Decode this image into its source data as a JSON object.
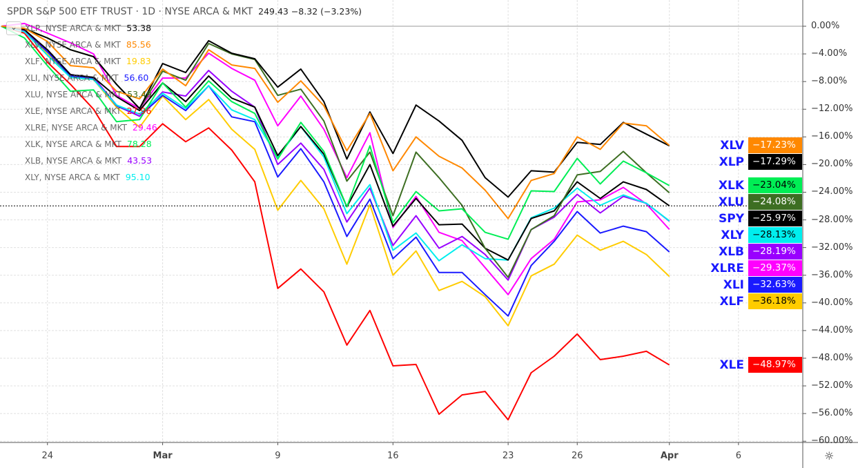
{
  "header": {
    "title": "SPDR S&P 500 ETF TRUST · 1D · NYSE ARCA & MKT",
    "quote": "249.43 −8.32 (−3.23%)",
    "collapse_icon": "chevron-down-icon"
  },
  "legend": [
    {
      "label": "XLP, NYSE ARCA & MKT",
      "value": "53.38",
      "color": "#111111"
    },
    {
      "label": "XLV, NYSE ARCA & MKT",
      "value": "85.56",
      "color": "#ff8800"
    },
    {
      "label": "XLF, NYSE ARCA & MKT",
      "value": "19.83",
      "color": "#ffcc00"
    },
    {
      "label": "XLI, NYSE ARCA & MKT",
      "value": "56.60",
      "color": "#1a1aff"
    },
    {
      "label": "XLU, NYSE ARCA & MKT",
      "value": "53.49",
      "color": "#3d6e22"
    },
    {
      "label": "XLE, NYSE ARCA & MKT",
      "value": "27.96",
      "color": "#ff0000"
    },
    {
      "label": "XLRE, NYSE ARCA & MKT",
      "value": "29.46",
      "color": "#ff00ff"
    },
    {
      "label": "XLK, NYSE ARCA & MKT",
      "value": "78.28",
      "color": "#00ee55"
    },
    {
      "label": "XLB, NYSE ARCA & MKT",
      "value": "43.53",
      "color": "#9900ff"
    },
    {
      "label": "XLY, NYSE ARCA & MKT",
      "value": "95.10",
      "color": "#00eeee"
    }
  ],
  "chart_data": {
    "type": "line",
    "title": "SPDR S&P 500 ETF TRUST · 1D · NYSE ARCA & MKT",
    "x": [
      "Feb 20",
      "Feb 21",
      "Feb 24",
      "Feb 25",
      "Feb 26",
      "Feb 27",
      "Feb 28",
      "Mar 2",
      "Mar 3",
      "Mar 4",
      "Mar 5",
      "Mar 6",
      "Mar 9",
      "Mar 10",
      "Mar 11",
      "Mar 12",
      "Mar 13",
      "Mar 16",
      "Mar 17",
      "Mar 18",
      "Mar 19",
      "Mar 20",
      "Mar 23",
      "Mar 24",
      "Mar 25",
      "Mar 26",
      "Mar 27",
      "Mar 30",
      "Mar 31",
      "Apr 1"
    ],
    "x_tick_labels": [
      "24",
      "Mar",
      "9",
      "16",
      "23",
      "26",
      "Apr",
      "6"
    ],
    "y_tick_labels": [
      "0.00%",
      "−4.00%",
      "−8.00%",
      "−12.00%",
      "−16.00%",
      "−20.00%",
      "−24.00%",
      "−28.00%",
      "−32.00%",
      "−36.00%",
      "−40.00%",
      "−44.00%",
      "−48.00%",
      "−52.00%",
      "−56.00%",
      "−60.00%"
    ],
    "ylim": [
      -61,
      3.5
    ],
    "yunit": "%",
    "grid": true,
    "legend_position": "top-left",
    "series": [
      {
        "name": "XLV",
        "color": "#ff8800",
        "badge_text": "#ffffff",
        "last": "−17.23%",
        "values": [
          0,
          -0.3,
          -2.2,
          -5.7,
          -6.0,
          -9.4,
          -10.5,
          -6.2,
          -8.6,
          -3.4,
          -5.6,
          -6.1,
          -11.0,
          -7.9,
          -11.5,
          -18.0,
          -12.6,
          -20.9,
          -16.0,
          -18.8,
          -20.5,
          -23.7,
          -27.8,
          -22.3,
          -21.3,
          -16.0,
          -17.8,
          -14.0,
          -14.4,
          -17.23
        ]
      },
      {
        "name": "XLP",
        "color": "#000000",
        "badge_text": "#ffffff",
        "last": "−17.29%",
        "values": [
          0,
          -0.4,
          -1.7,
          -3.4,
          -4.4,
          -8.4,
          -11.9,
          -5.4,
          -6.7,
          -2.1,
          -3.9,
          -4.7,
          -8.8,
          -6.2,
          -10.9,
          -19.2,
          -12.4,
          -18.4,
          -11.4,
          -13.7,
          -16.5,
          -21.9,
          -24.7,
          -20.9,
          -21.1,
          -16.8,
          -17.1,
          -13.9,
          -15.6,
          -17.29
        ]
      },
      {
        "name": "XLK",
        "color": "#00ee55",
        "badge_text": "#000000",
        "last": "−23.04%",
        "values": [
          0,
          -1.7,
          -5.7,
          -9.4,
          -9.2,
          -13.8,
          -13.5,
          -8.2,
          -11.7,
          -7.9,
          -10.9,
          -12.6,
          -19.2,
          -13.9,
          -18.1,
          -26.1,
          -17.3,
          -28.4,
          -23.9,
          -26.7,
          -26.4,
          -29.8,
          -30.8,
          -23.8,
          -23.9,
          -19.1,
          -22.8,
          -19.5,
          -21.2,
          -23.04
        ]
      },
      {
        "name": "XLU",
        "color": "#3d6e22",
        "badge_text": "#ffffff",
        "last": "−24.08%",
        "values": [
          0,
          -0.3,
          -1.7,
          -3.4,
          -4.4,
          -8.4,
          -11.9,
          -6.5,
          -7.8,
          -2.5,
          -4.0,
          -4.8,
          -10.0,
          -9.1,
          -13.7,
          -22.4,
          -18.2,
          -27.4,
          -18.2,
          -21.9,
          -25.9,
          -32.1,
          -36.3,
          -29.4,
          -27.4,
          -21.5,
          -21.0,
          -18.1,
          -21.2,
          -24.08
        ]
      },
      {
        "name": "SPY",
        "color": "#000000",
        "badge_text": "#ffffff",
        "last": "−25.97%",
        "values": [
          0,
          -0.5,
          -3.4,
          -7.0,
          -7.4,
          -10.2,
          -12.2,
          -8.2,
          -10.9,
          -7.2,
          -10.4,
          -11.7,
          -18.7,
          -14.5,
          -18.5,
          -26.1,
          -20.0,
          -28.9,
          -24.9,
          -28.7,
          -28.6,
          -32.1,
          -33.8,
          -27.8,
          -26.7,
          -22.5,
          -24.9,
          -22.5,
          -23.6,
          -25.97
        ]
      },
      {
        "name": "XLY",
        "color": "#00eeee",
        "badge_text": "#000000",
        "last": "−28.13%",
        "values": [
          0,
          -0.8,
          -4.2,
          -7.4,
          -7.7,
          -11.4,
          -12.7,
          -9.7,
          -11.9,
          -8.6,
          -12.1,
          -13.5,
          -18.9,
          -14.5,
          -18.9,
          -27.1,
          -22.9,
          -32.4,
          -29.9,
          -33.9,
          -31.6,
          -33.6,
          -33.8,
          -27.7,
          -26.3,
          -23.4,
          -25.9,
          -24.4,
          -25.6,
          -28.13
        ]
      },
      {
        "name": "XLB",
        "color": "#9900ff",
        "badge_text": "#ffffff",
        "last": "−28.19%",
        "values": [
          0,
          -0.6,
          -3.4,
          -7.0,
          -7.4,
          -11.4,
          -13.0,
          -9.5,
          -10.1,
          -6.4,
          -9.4,
          -11.7,
          -20.0,
          -16.9,
          -20.7,
          -28.3,
          -23.4,
          -31.7,
          -27.4,
          -32.1,
          -30.4,
          -33.0,
          -36.7,
          -29.4,
          -27.6,
          -24.3,
          -27.0,
          -24.6,
          -25.6,
          -28.19
        ]
      },
      {
        "name": "XLRE",
        "color": "#ff00ff",
        "badge_text": "#ffffff",
        "last": "−29.37%",
        "values": [
          0,
          0.4,
          -1.0,
          -2.4,
          -4.0,
          -10.0,
          -11.9,
          -7.5,
          -7.5,
          -3.9,
          -6.1,
          -7.8,
          -14.4,
          -10.1,
          -14.9,
          -21.9,
          -15.4,
          -29.1,
          -24.6,
          -29.8,
          -31.0,
          -34.9,
          -38.8,
          -33.6,
          -30.8,
          -25.4,
          -25.1,
          -23.3,
          -25.7,
          -29.37
        ]
      },
      {
        "name": "XLI",
        "color": "#1a1aff",
        "badge_text": "#ffffff",
        "last": "−32.63%",
        "values": [
          0,
          -0.6,
          -3.7,
          -7.2,
          -7.5,
          -11.5,
          -13.0,
          -10.0,
          -12.2,
          -8.6,
          -13.1,
          -13.8,
          -21.8,
          -17.7,
          -22.5,
          -30.4,
          -25.0,
          -33.6,
          -30.5,
          -35.6,
          -35.6,
          -38.8,
          -41.9,
          -34.6,
          -31.1,
          -26.8,
          -29.9,
          -28.9,
          -29.7,
          -32.63
        ]
      },
      {
        "name": "XLF",
        "color": "#ffcc00",
        "badge_text": "#000000",
        "last": "−36.18%",
        "values": [
          0,
          -0.7,
          -4.0,
          -7.4,
          -7.7,
          -11.7,
          -14.6,
          -10.1,
          -13.5,
          -10.6,
          -14.9,
          -17.8,
          -26.6,
          -22.3,
          -26.4,
          -34.4,
          -25.8,
          -36.0,
          -32.5,
          -38.2,
          -36.9,
          -39.1,
          -43.3,
          -36.1,
          -34.4,
          -30.2,
          -32.4,
          -31.1,
          -33.0,
          -36.18
        ]
      },
      {
        "name": "XLE",
        "color": "#ff0000",
        "badge_text": "#ffffff",
        "last": "−48.97%",
        "values": [
          0,
          -1.0,
          -5.2,
          -8.4,
          -12.0,
          -17.4,
          -17.4,
          -14.1,
          -16.7,
          -14.7,
          -17.9,
          -22.5,
          -37.9,
          -35.1,
          -38.4,
          -46.1,
          -41.1,
          -49.1,
          -48.9,
          -56.1,
          -53.3,
          -52.8,
          -56.9,
          -50.1,
          -47.7,
          -44.5,
          -48.2,
          -47.7,
          -47.0,
          -48.97
        ]
      }
    ]
  },
  "footer": {
    "settings_icon": "gear-icon"
  }
}
